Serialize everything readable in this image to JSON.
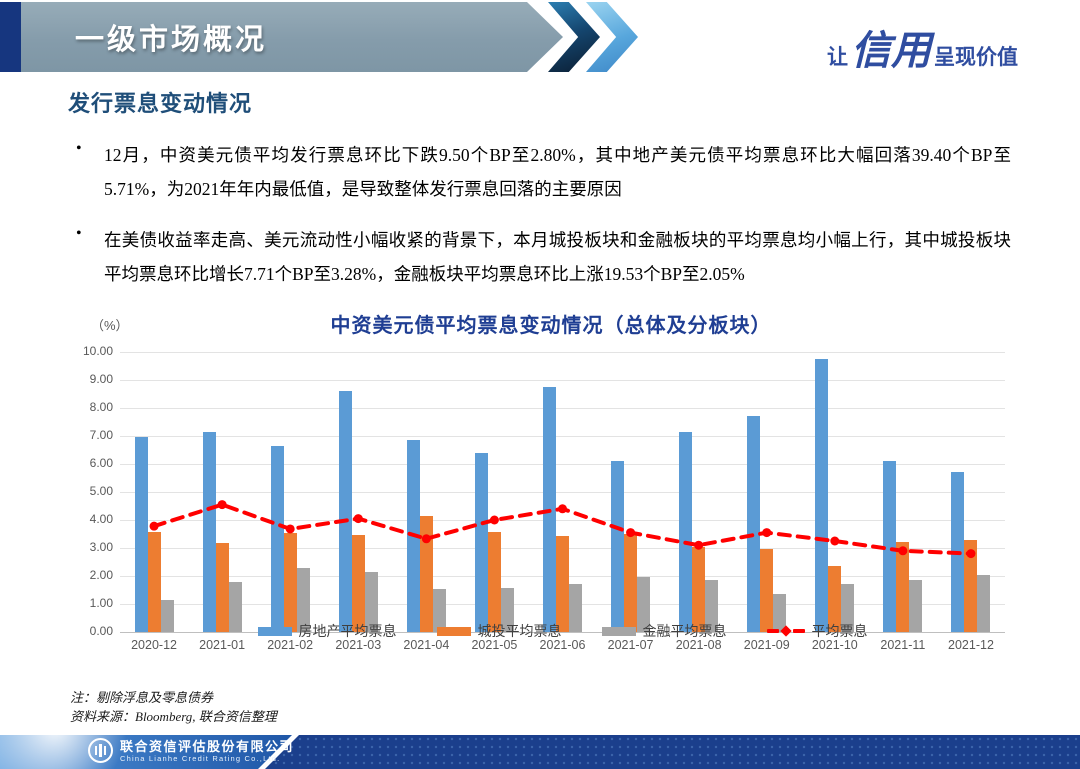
{
  "header": {
    "banner_title": "一级市场概况",
    "slogan_prefix": "让",
    "slogan_script": "信用",
    "slogan_suffix": "呈现价值"
  },
  "section": {
    "heading": "发行票息变动情况"
  },
  "bullets": [
    "12月，中资美元债平均发行票息环比下跌9.50个BP至2.80%，其中地产美元债平均票息环比大幅回落39.40个BP至5.71%，为2021年年内最低值，是导致整体发行票息回落的主要原因",
    "在美债收益率走高、美元流动性小幅收紧的背景下，本月城投板块和金融板块的平均票息均小幅上行，其中城投板块平均票息环比增长7.71个BP至3.28%，金融板块平均票息环比上涨19.53个BP至2.05%"
  ],
  "chart_data": {
    "type": "bar",
    "title": "中资美元债平均票息变动情况（总体及分板块）",
    "unit_label": "（%）",
    "categories": [
      "2020-12",
      "2021-01",
      "2021-02",
      "2021-03",
      "2021-04",
      "2021-05",
      "2021-06",
      "2021-07",
      "2021-08",
      "2021-09",
      "2021-10",
      "2021-11",
      "2021-12"
    ],
    "series": [
      {
        "name": "房地产平均票息",
        "type": "bar",
        "color": "#5B9BD5",
        "values": [
          6.95,
          7.15,
          6.65,
          8.6,
          6.87,
          6.38,
          8.75,
          6.1,
          7.15,
          7.72,
          9.75,
          6.1,
          5.71
        ]
      },
      {
        "name": "城投平均票息",
        "type": "bar",
        "color": "#ED7D31",
        "values": [
          3.58,
          3.18,
          3.55,
          3.45,
          4.15,
          3.58,
          3.42,
          3.5,
          3.05,
          2.98,
          2.35,
          3.2,
          3.28
        ]
      },
      {
        "name": "金融平均票息",
        "type": "bar",
        "color": "#A5A5A5",
        "values": [
          1.15,
          1.78,
          2.27,
          2.15,
          1.53,
          1.58,
          1.72,
          1.95,
          1.85,
          1.35,
          1.7,
          1.85,
          2.05
        ]
      },
      {
        "name": "平均票息",
        "type": "line",
        "color": "#FF0000",
        "values": [
          3.78,
          4.55,
          3.68,
          4.05,
          3.33,
          4.0,
          4.4,
          3.55,
          3.1,
          3.55,
          3.25,
          2.9,
          2.8
        ]
      }
    ],
    "ylim": [
      0,
      10
    ],
    "ytick_step": 1,
    "ytick_decimals": 2,
    "grid": true,
    "legend_position": "bottom"
  },
  "notes": [
    "注：剔除浮息及零息债券",
    "资料来源：Bloomberg, 联合资信整理"
  ],
  "footer": {
    "company_cn": "联合资信评估股份有限公司",
    "company_en": "China Lianhe Credit Rating Co.,Ltd."
  },
  "colors": {
    "accent_navy": "#16367F",
    "banner_gray_blue": "#859CAB",
    "heading_blue": "#1F4E79",
    "title_blue": "#1F3E93",
    "bar_blue": "#5B9BD5",
    "bar_orange": "#ED7D31",
    "bar_gray": "#A5A5A5",
    "line_red": "#FF0000",
    "footer_blue": "#1B3F8C"
  }
}
